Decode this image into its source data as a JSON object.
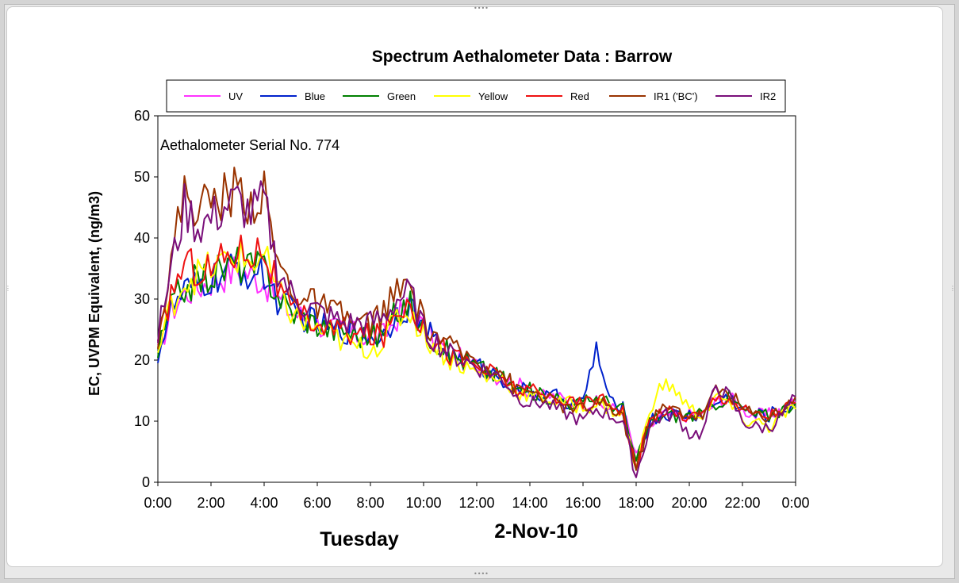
{
  "chart_data": {
    "type": "line",
    "title": "Spectrum Aethalometer Data  :  Barrow",
    "annotation": "Aethalometer  Serial No. 774",
    "ylabel": "EC, UVPM Equivalent, (ng/m3)",
    "xlabel_left": "Tuesday",
    "xlabel_center": "2-Nov-10",
    "ylim": [
      0,
      60
    ],
    "yticks": [
      "0",
      "10",
      "20",
      "30",
      "40",
      "50",
      "60"
    ],
    "xlim_hours": [
      0,
      24
    ],
    "xticks": [
      "0:00",
      "2:00",
      "4:00",
      "6:00",
      "8:00",
      "10:00",
      "12:00",
      "14:00",
      "16:00",
      "18:00",
      "20:00",
      "22:00",
      "0:00"
    ],
    "legend_position": "top",
    "x": [
      0,
      0.5,
      1,
      1.5,
      2,
      2.5,
      3,
      3.5,
      4,
      4.5,
      5,
      5.5,
      6,
      6.5,
      7,
      7.5,
      8,
      8.5,
      9,
      9.5,
      10,
      10.5,
      11,
      11.5,
      12,
      12.5,
      13,
      13.5,
      14,
      14.5,
      15,
      15.5,
      16,
      16.5,
      17,
      17.5,
      18,
      18.5,
      19,
      19.5,
      20,
      20.5,
      21,
      21.5,
      22,
      22.5,
      23,
      23.5,
      24
    ],
    "series": [
      {
        "name": "UV",
        "color": "#ff33ff",
        "values": [
          21,
          28,
          31,
          32,
          33,
          34,
          35,
          34,
          33,
          30,
          28,
          27,
          26,
          25,
          25,
          24,
          24,
          24,
          27,
          29,
          25,
          23,
          21,
          20,
          19,
          18,
          17,
          16,
          15,
          14,
          14,
          13,
          13,
          13,
          12,
          12,
          4,
          9,
          11,
          11,
          11,
          11,
          13,
          14,
          12,
          11,
          11,
          12,
          13
        ]
      },
      {
        "name": "Blue",
        "color": "#0022cc",
        "values": [
          21,
          28,
          31,
          32,
          33,
          34,
          35,
          34,
          34,
          30,
          28,
          27,
          26,
          25,
          25,
          24,
          24,
          24,
          28,
          29,
          25,
          23,
          21,
          20,
          19,
          18,
          17,
          15,
          15,
          14,
          14,
          13,
          13,
          22,
          13,
          12,
          3,
          10,
          11,
          11,
          11,
          11,
          13,
          14,
          12,
          11,
          11,
          12,
          13
        ]
      },
      {
        "name": "Green",
        "color": "#008000",
        "values": [
          21,
          29,
          32,
          33,
          34,
          35,
          36,
          35,
          35,
          31,
          28,
          27,
          26,
          25,
          25,
          24,
          24,
          24,
          28,
          29,
          25,
          23,
          21,
          20,
          19,
          18,
          17,
          15,
          15,
          14,
          14,
          13,
          13,
          14,
          13,
          12,
          3,
          10,
          11,
          11,
          11,
          11,
          13,
          14,
          12,
          11,
          11,
          12,
          13
        ]
      },
      {
        "name": "Yellow",
        "color": "#ffff00",
        "values": [
          21,
          29,
          33,
          34,
          35,
          36,
          37,
          36,
          37,
          31,
          28,
          26,
          25,
          24,
          23,
          22,
          22,
          23,
          27,
          28,
          24,
          22,
          20,
          19,
          18,
          17,
          17,
          15,
          14,
          14,
          13,
          13,
          12,
          13,
          12,
          11,
          2,
          12,
          16,
          15,
          12,
          11,
          14,
          13,
          10,
          10,
          9,
          11,
          12
        ]
      },
      {
        "name": "Red",
        "color": "#ee1111",
        "values": [
          22,
          31,
          36,
          35,
          35,
          37,
          38,
          38,
          38,
          32,
          28,
          27,
          26,
          25,
          25,
          24,
          24,
          24,
          28,
          30,
          25,
          23,
          21,
          20,
          19,
          18,
          17,
          15,
          15,
          14,
          14,
          13,
          13,
          14,
          13,
          12,
          2,
          10,
          12,
          11,
          11,
          11,
          14,
          14,
          12,
          11,
          11,
          12,
          13
        ]
      },
      {
        "name": "IR1 ('BC')",
        "color": "#993300",
        "values": [
          24,
          36,
          48,
          45,
          46,
          47,
          48,
          46,
          47,
          36,
          32,
          30,
          29,
          28,
          27,
          26,
          26,
          28,
          31,
          32,
          26,
          24,
          22,
          21,
          20,
          19,
          18,
          15,
          15,
          14,
          13,
          12,
          12,
          13,
          12,
          11,
          2,
          10,
          12,
          12,
          11,
          11,
          15,
          15,
          12,
          11,
          11,
          12,
          14
        ]
      },
      {
        "name": "IR2",
        "color": "#7a0f7a",
        "values": [
          24,
          35,
          45,
          42,
          43,
          45,
          46,
          44,
          46,
          35,
          31,
          29,
          28,
          27,
          26,
          26,
          26,
          27,
          30,
          31,
          25,
          23,
          21,
          20,
          19,
          18,
          17,
          14,
          13,
          13,
          12,
          11,
          10,
          12,
          11,
          10,
          1,
          9,
          11,
          11,
          8,
          8,
          16,
          14,
          10,
          9,
          9,
          11,
          14
        ]
      }
    ]
  }
}
